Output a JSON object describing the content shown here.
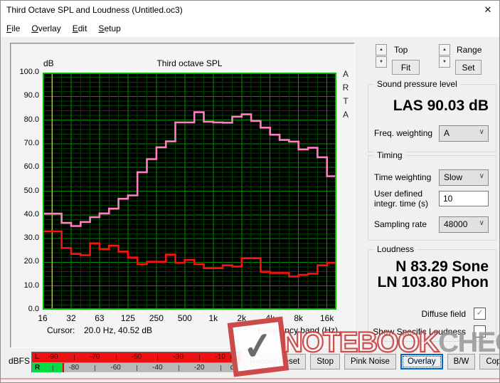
{
  "window": {
    "title": "Third Octave SPL and Loudness (Untitled.oc3)"
  },
  "icons": {
    "close": "✕",
    "chevron_down": "∨",
    "spin_up": "▲",
    "spin_down": "▼",
    "check": "✓"
  },
  "menu": {
    "items": [
      {
        "label": "File",
        "accel": 0
      },
      {
        "label": "Overlay",
        "accel": 0
      },
      {
        "label": "Edit",
        "accel": 0
      },
      {
        "label": "Setup",
        "accel": 0
      }
    ]
  },
  "chart": {
    "unit": "dB",
    "title": "Third octave SPL",
    "brand": [
      "A",
      "R",
      "T",
      "A"
    ],
    "cursor_label": "Cursor:",
    "cursor_value": "20.0 Hz, 40.52 dB",
    "x_axis_label": "Frequency band (Hz)"
  },
  "chart_data": {
    "type": "step-line",
    "title": "Third octave SPL",
    "ylabel": "dB",
    "xlabel": "Frequency band (Hz)",
    "ylim": [
      0,
      100
    ],
    "y_tick_labels": [
      "0.0",
      "10.0",
      "20.0",
      "30.0",
      "40.0",
      "50.0",
      "60.0",
      "70.0",
      "80.0",
      "90.0",
      "100.0"
    ],
    "x_tick_labels": [
      "16",
      "32",
      "63",
      "125",
      "250",
      "500",
      "1k",
      "2k",
      "4k",
      "8k",
      "16k"
    ],
    "bands_hz": [
      16,
      20,
      25,
      31.5,
      40,
      50,
      63,
      80,
      100,
      125,
      160,
      200,
      250,
      315,
      400,
      500,
      630,
      800,
      1000,
      1250,
      1600,
      2000,
      2500,
      3150,
      4000,
      5000,
      6300,
      8000,
      10000,
      12500,
      16000
    ],
    "series": [
      {
        "name": "overlay",
        "color": "#ff7fc0",
        "values": [
          40.5,
          40.5,
          36.6,
          35.3,
          37.0,
          39.0,
          40.6,
          42.6,
          46.8,
          48.2,
          58.0,
          63.5,
          68.5,
          71.0,
          79.0,
          79.0,
          83.3,
          79.3,
          79.0,
          78.9,
          81.4,
          82.4,
          79.6,
          76.8,
          73.8,
          71.6,
          70.9,
          67.6,
          68.3,
          64.3,
          56.3
        ]
      },
      {
        "name": "current",
        "color": "#fe1010",
        "values": [
          33.0,
          33.0,
          26.0,
          23.5,
          23.0,
          28.0,
          25.5,
          27.0,
          24.5,
          22.0,
          19.2,
          20.2,
          20.2,
          23.2,
          19.8,
          21.0,
          19.2,
          17.5,
          17.5,
          18.7,
          18.2,
          21.7,
          21.7,
          16.0,
          15.5,
          15.5,
          14.0,
          14.7,
          15.2,
          18.7,
          19.8
        ]
      }
    ],
    "cursor": {
      "hz": 20.0,
      "db": 40.52,
      "band_index": 1,
      "color": "#c6c600"
    },
    "grid": {
      "background": "#000000",
      "major_color": "#008f00",
      "minor_color": "#003f00",
      "border_color": "#00b800"
    }
  },
  "controls": {
    "top_label": "Top",
    "fit": "Fit",
    "range_label": "Range",
    "set": "Set"
  },
  "spl": {
    "title": "Sound pressure level",
    "value": "LAS 90.03 dB",
    "freq_weighting_label": "Freq. weighting",
    "freq_weighting_value": "A"
  },
  "timing": {
    "title": "Timing",
    "time_weighting_label": "Time weighting",
    "time_weighting_value": "Slow",
    "integr_label_1": "User defined",
    "integr_label_2": "integr. time (s)",
    "integr_value": "10",
    "sampling_label": "Sampling rate",
    "sampling_value": "48000"
  },
  "loudness": {
    "title": "Loudness",
    "n": "N 83.29 Sone",
    "ln": "LN 103.80 Phon",
    "diffuse_label": "Diffuse field",
    "diffuse_checked": true,
    "specific_label": "Show Specific Loudness",
    "specific_checked": false
  },
  "meter": {
    "label": "dBFS",
    "range_db": [
      -100,
      0
    ],
    "rows": [
      {
        "channel": "L",
        "labels": [
          -90,
          -70,
          -50,
          -30,
          -10
        ],
        "ticks": [
          -80,
          -60,
          -40,
          -20
        ],
        "unit": "dB",
        "level_db": 0
      },
      {
        "channel": "R",
        "labels": [
          -80,
          -60,
          -40,
          -20
        ],
        "ticks": [
          -90,
          -70,
          -50,
          -30,
          -10
        ],
        "unit": "dB",
        "level_db": -85.5,
        "peak_db": -85.5
      }
    ]
  },
  "transport_buttons": [
    {
      "label": "Record/Reset",
      "focused": false
    },
    {
      "label": "Stop",
      "focused": false
    },
    {
      "label": "Pink Noise",
      "focused": false
    },
    {
      "label": "Overlay",
      "focused": true
    },
    {
      "label": "B/W",
      "focused": false
    },
    {
      "label": "Copy",
      "focused": false
    }
  ],
  "watermark": {
    "check_icon": "✓",
    "text_primary": "NOTEBOOK",
    "text_secondary": "CHECK"
  }
}
